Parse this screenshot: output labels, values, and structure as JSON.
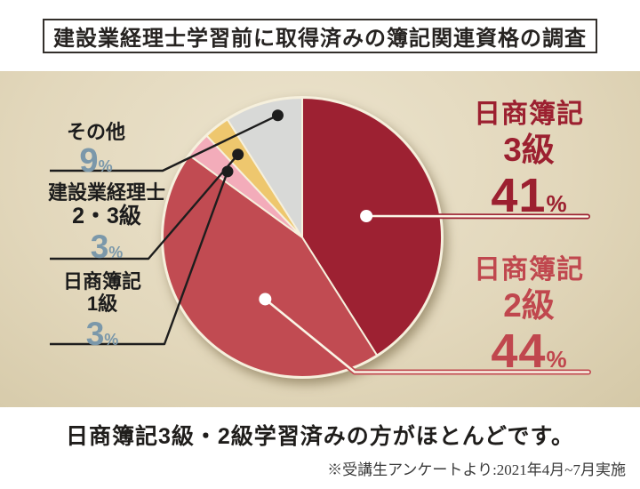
{
  "title": "建設業経理士学習前に取得済みの簿記関連資格の調査",
  "caption": "日商簿記3級・2級学習済みの方がほとんどです。",
  "footnote": "※受講生アンケートより:2021年4月~7月実施",
  "percent_sign": "%",
  "colors": {
    "band_light": "#ece4ce",
    "band_dark": "#cdc09c",
    "dark_red": "#9d2132",
    "rose": "#c14b52",
    "pink": "#f3acba",
    "gold": "#eec76e",
    "gray": "#d8d9d7",
    "value_blue": "#7b98aa",
    "leader_black": "#1d1d1d",
    "rim_cream": "#f6f0dd"
  },
  "chart_data": {
    "type": "pie",
    "title": "建設業経理士学習前に取得済みの簿記関連資格の調査",
    "unit": "%",
    "start_angle_deg": 0,
    "direction": "clockwise",
    "legend_position": "callouts",
    "segments": [
      {
        "label": "日商簿記3級",
        "label_lines": [
          "日商簿記",
          "3級"
        ],
        "value": 41,
        "color": "#9d2132",
        "text_color": "#9c2030",
        "callout_side": "right"
      },
      {
        "label": "日商簿記2級",
        "label_lines": [
          "日商簿記",
          "2級"
        ],
        "value": 44,
        "color": "#c14b52",
        "text_color": "#c0474e",
        "callout_side": "right"
      },
      {
        "label": "日商簿記1級",
        "label_lines": [
          "日商簿記",
          "1級"
        ],
        "value": 3,
        "color": "#f3acba",
        "text_color": "#1c1c1c",
        "value_color": "#7b98aa",
        "callout_side": "left"
      },
      {
        "label": "建設業経理士2・3級",
        "label_lines": [
          "建設業経理士",
          "2・3級"
        ],
        "value": 3,
        "color": "#eec76e",
        "text_color": "#1c1c1c",
        "value_color": "#7b98aa",
        "callout_side": "left"
      },
      {
        "label": "その他",
        "label_lines": [
          "その他"
        ],
        "value": 9,
        "color": "#d8d9d7",
        "text_color": "#1c1c1c",
        "value_color": "#7b98aa",
        "callout_side": "left"
      }
    ]
  }
}
